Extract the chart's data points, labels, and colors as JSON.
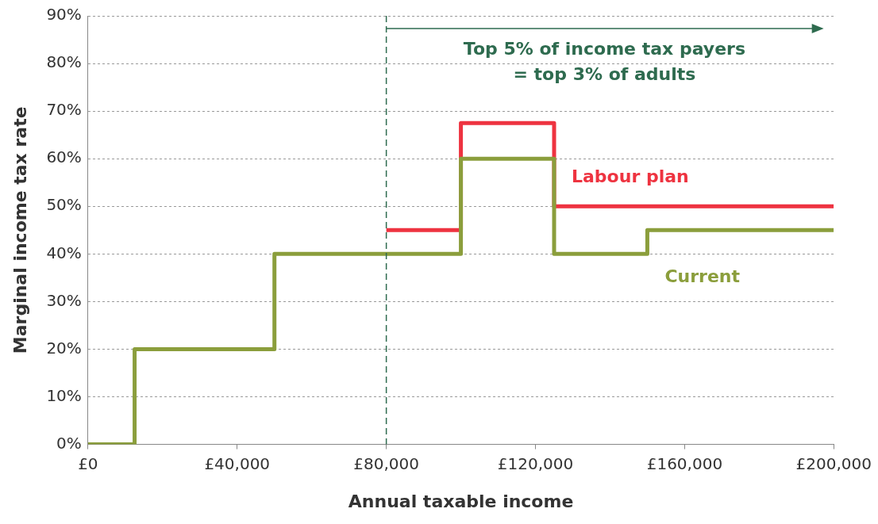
{
  "chart_data": {
    "type": "step",
    "xlabel": "Annual taxable income",
    "ylabel": "Marginal income tax rate",
    "xlim": [
      0,
      200000
    ],
    "ylim": [
      0,
      90
    ],
    "xticks": [
      {
        "value": 0,
        "label": "£0"
      },
      {
        "value": 40000,
        "label": "£40,000"
      },
      {
        "value": 80000,
        "label": "£80,000"
      },
      {
        "value": 120000,
        "label": "£120,000"
      },
      {
        "value": 160000,
        "label": "£160,000"
      },
      {
        "value": 200000,
        "label": "£200,000"
      }
    ],
    "yticks": [
      {
        "value": 0,
        "label": "0%"
      },
      {
        "value": 10,
        "label": "10%"
      },
      {
        "value": 20,
        "label": "20%"
      },
      {
        "value": 30,
        "label": "30%"
      },
      {
        "value": 40,
        "label": "40%"
      },
      {
        "value": 50,
        "label": "50%"
      },
      {
        "value": 60,
        "label": "60%"
      },
      {
        "value": 70,
        "label": "70%"
      },
      {
        "value": 80,
        "label": "80%"
      },
      {
        "value": 90,
        "label": "90%"
      }
    ],
    "grid": "y",
    "legend": false,
    "marker": "none",
    "line_style": "solid",
    "series": [
      {
        "name": "Labour plan",
        "color": "#ee3340",
        "x": [
          80000,
          100000,
          125000,
          200000
        ],
        "values": [
          45,
          67.5,
          50,
          50
        ]
      },
      {
        "name": "Current",
        "color": "#8b9e3c",
        "x": [
          0,
          12500,
          50000,
          100000,
          125000,
          150000,
          200000
        ],
        "values": [
          0,
          20,
          40,
          60,
          40,
          45,
          45
        ]
      }
    ],
    "ref_lines": [
      {
        "axis": "x",
        "value": 80000,
        "color": "#2e6b4f",
        "line_style": "dashed"
      }
    ],
    "annotations": [
      "Top 5% of income tax payers\n= top 3% of adults"
    ]
  }
}
